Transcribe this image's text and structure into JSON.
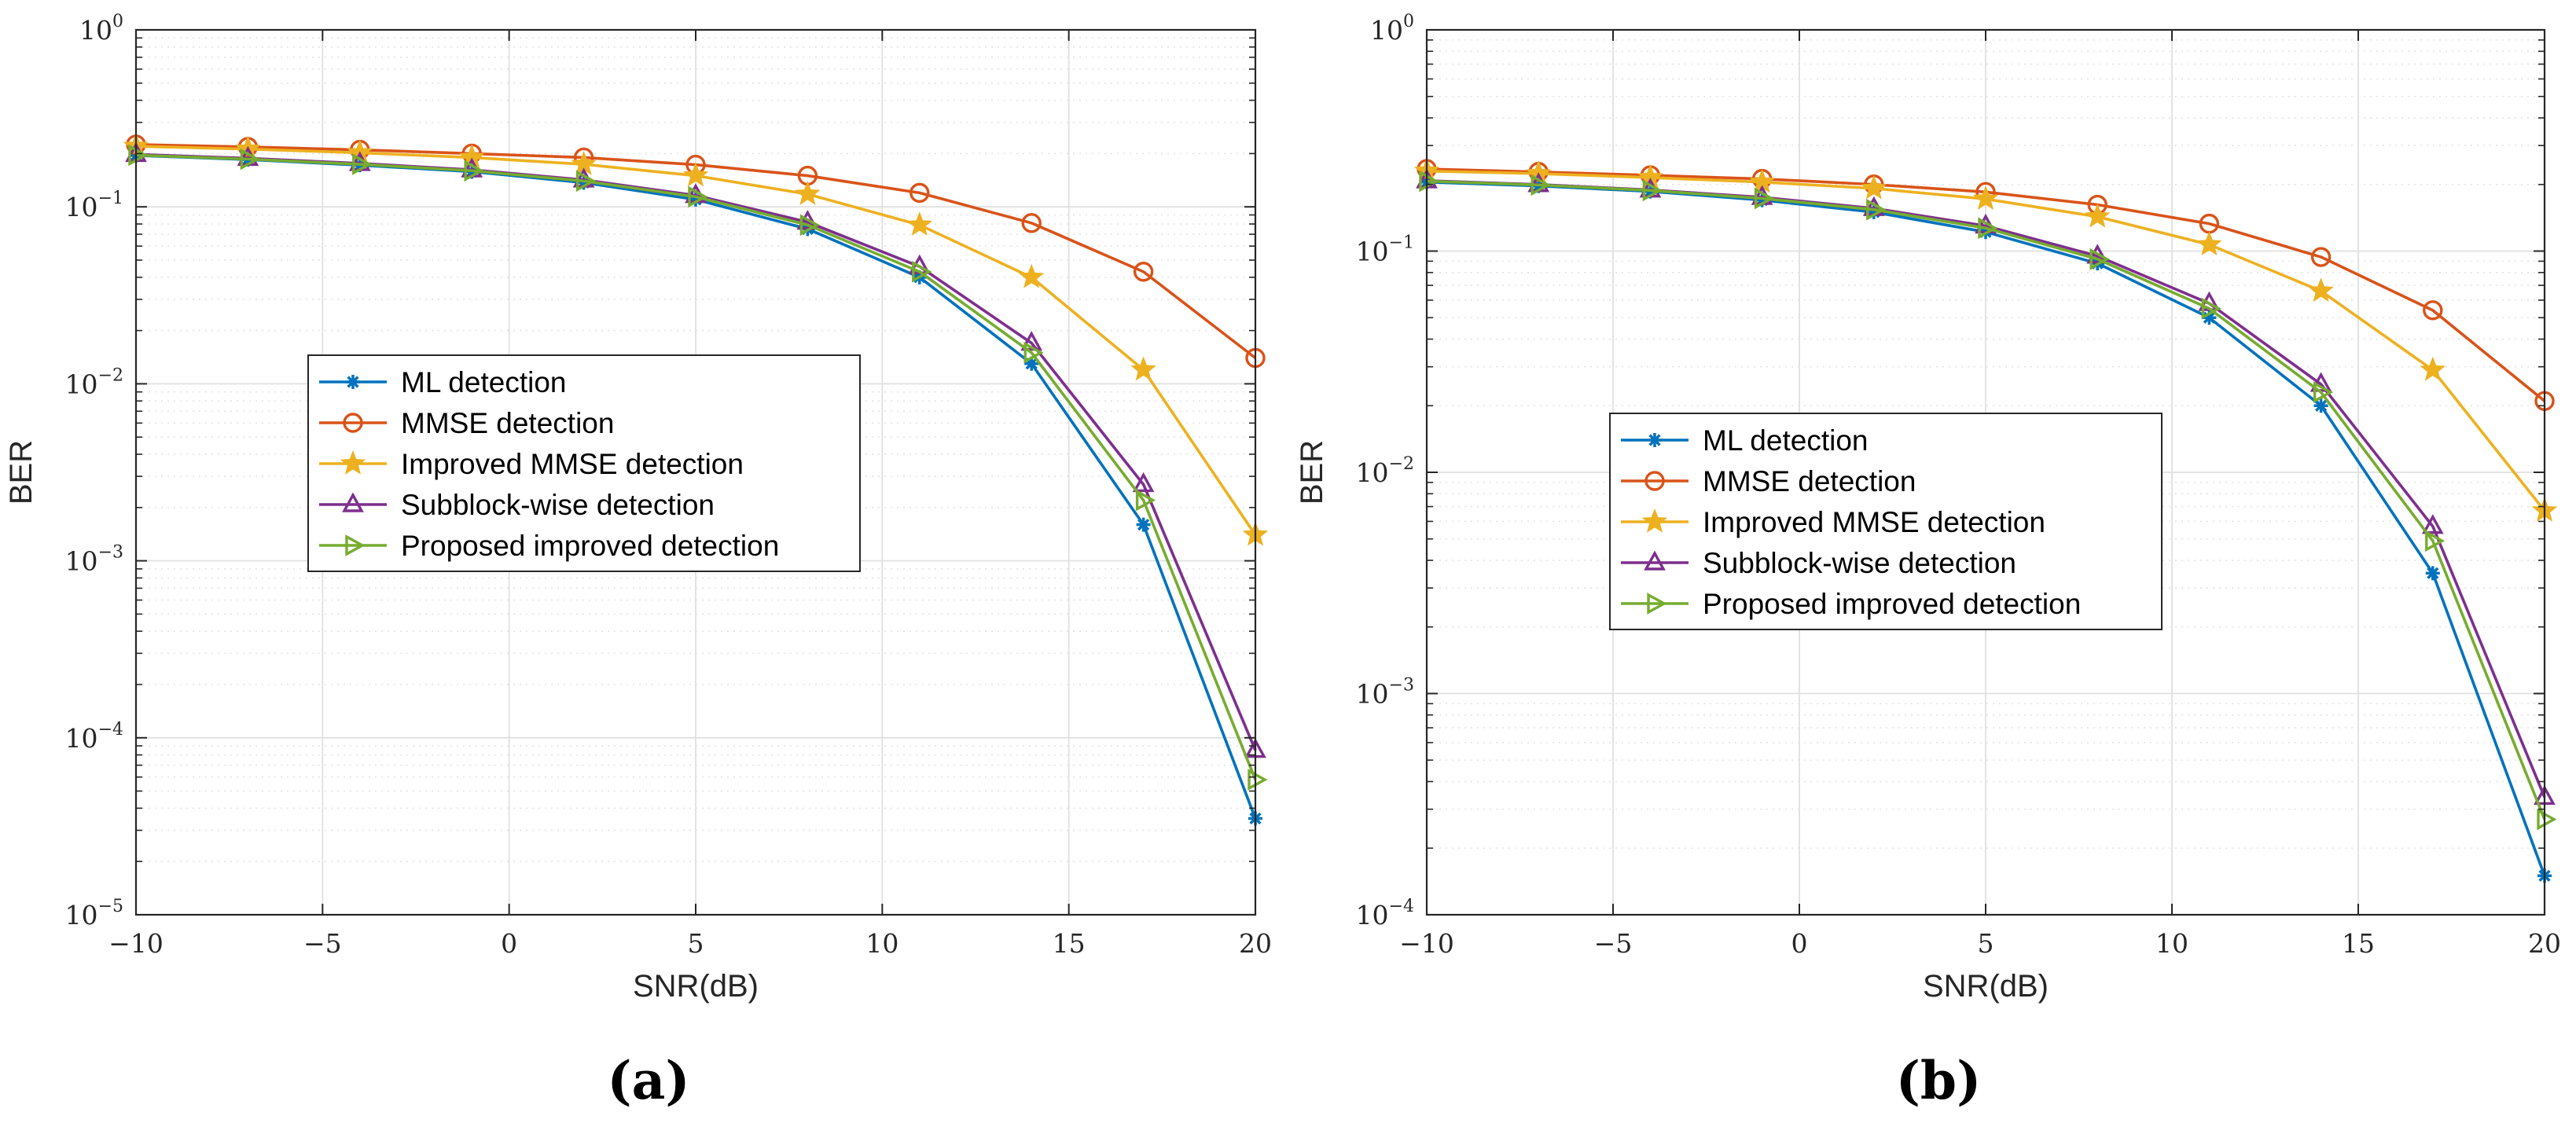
{
  "colors": {
    "ml": "#0072BD",
    "mmse": "#D95319",
    "improved_mmse": "#EDB120",
    "subblock": "#7E2F8E",
    "proposed": "#77AC30"
  },
  "chart_data": [
    {
      "type": "line",
      "panel_label": "(a)",
      "xlabel": "SNR(dB)",
      "ylabel": "BER",
      "yscale": "log",
      "grid": true,
      "xlim": [
        -10,
        20
      ],
      "ylim": [
        1e-05,
        1
      ],
      "xticks": [
        -10,
        -5,
        0,
        5,
        10,
        15,
        20
      ],
      "xtick_labels": [
        "−10",
        "−5",
        "0",
        "5",
        "10",
        "15",
        "20"
      ],
      "yticks": [
        {
          "value": 1,
          "base": "10",
          "exp": "0"
        },
        {
          "value": 0.1,
          "base": "10",
          "exp": "−1"
        },
        {
          "value": 0.01,
          "base": "10",
          "exp": "−2"
        },
        {
          "value": 0.001,
          "base": "10",
          "exp": "−3"
        },
        {
          "value": 0.0001,
          "base": "10",
          "exp": "−4"
        },
        {
          "value": 1e-05,
          "base": "10",
          "exp": "−5"
        }
      ],
      "legend_position": "center-left",
      "x": [
        -10,
        -7,
        -4,
        -1,
        2,
        5,
        8,
        11,
        14,
        17,
        20
      ],
      "series": [
        {
          "name": "ML detection",
          "color_key": "ml",
          "marker": "asterisk",
          "values": [
            0.195,
            0.185,
            0.172,
            0.158,
            0.137,
            0.11,
            0.075,
            0.04,
            0.013,
            0.0016,
            3.5e-05
          ]
        },
        {
          "name": "MMSE detection",
          "color_key": "mmse",
          "marker": "circle",
          "values": [
            0.225,
            0.218,
            0.21,
            0.2,
            0.19,
            0.173,
            0.15,
            0.12,
            0.081,
            0.043,
            0.014
          ]
        },
        {
          "name": "Improved MMSE detection",
          "color_key": "improved_mmse",
          "marker": "star",
          "values": [
            0.22,
            0.212,
            0.202,
            0.19,
            0.174,
            0.15,
            0.118,
            0.079,
            0.04,
            0.012,
            0.0014
          ]
        },
        {
          "name": "Subblock-wise detection",
          "color_key": "subblock",
          "marker": "triangle-up",
          "values": [
            0.198,
            0.188,
            0.176,
            0.162,
            0.142,
            0.116,
            0.082,
            0.046,
            0.017,
            0.0027,
            8.5e-05
          ]
        },
        {
          "name": "Proposed improved detection",
          "color_key": "proposed",
          "marker": "triangle-right",
          "values": [
            0.196,
            0.186,
            0.174,
            0.16,
            0.14,
            0.114,
            0.079,
            0.043,
            0.015,
            0.0022,
            5.8e-05
          ]
        }
      ]
    },
    {
      "type": "line",
      "panel_label": "(b)",
      "xlabel": "SNR(dB)",
      "ylabel": "BER",
      "yscale": "log",
      "grid": true,
      "xlim": [
        -10,
        20
      ],
      "ylim": [
        0.0001,
        1
      ],
      "xticks": [
        -10,
        -5,
        0,
        5,
        10,
        15,
        20
      ],
      "xtick_labels": [
        "−10",
        "−5",
        "0",
        "5",
        "10",
        "15",
        "20"
      ],
      "yticks": [
        {
          "value": 1,
          "base": "10",
          "exp": "0"
        },
        {
          "value": 0.1,
          "base": "10",
          "exp": "−1"
        },
        {
          "value": 0.01,
          "base": "10",
          "exp": "−2"
        },
        {
          "value": 0.001,
          "base": "10",
          "exp": "−3"
        },
        {
          "value": 0.0001,
          "base": "10",
          "exp": "−4"
        }
      ],
      "legend_position": "center-left",
      "x": [
        -10,
        -7,
        -4,
        -1,
        2,
        5,
        8,
        11,
        14,
        17,
        20
      ],
      "series": [
        {
          "name": "ML detection",
          "color_key": "ml",
          "marker": "asterisk",
          "values": [
            0.205,
            0.197,
            0.186,
            0.17,
            0.15,
            0.122,
            0.088,
            0.05,
            0.02,
            0.0035,
            0.00015
          ]
        },
        {
          "name": "MMSE detection",
          "color_key": "mmse",
          "marker": "circle",
          "values": [
            0.235,
            0.228,
            0.22,
            0.212,
            0.2,
            0.185,
            0.162,
            0.133,
            0.094,
            0.054,
            0.021
          ]
        },
        {
          "name": "Improved MMSE detection",
          "color_key": "improved_mmse",
          "marker": "star",
          "values": [
            0.23,
            0.224,
            0.215,
            0.205,
            0.192,
            0.172,
            0.143,
            0.107,
            0.066,
            0.029,
            0.0067
          ]
        },
        {
          "name": "Subblock-wise detection",
          "color_key": "subblock",
          "marker": "triangle-up",
          "values": [
            0.208,
            0.2,
            0.189,
            0.175,
            0.156,
            0.13,
            0.095,
            0.058,
            0.025,
            0.0057,
            0.00034
          ]
        },
        {
          "name": "Proposed improved detection",
          "color_key": "proposed",
          "marker": "triangle-right",
          "values": [
            0.207,
            0.199,
            0.188,
            0.173,
            0.154,
            0.127,
            0.092,
            0.055,
            0.023,
            0.0049,
            0.00027
          ]
        }
      ]
    }
  ]
}
